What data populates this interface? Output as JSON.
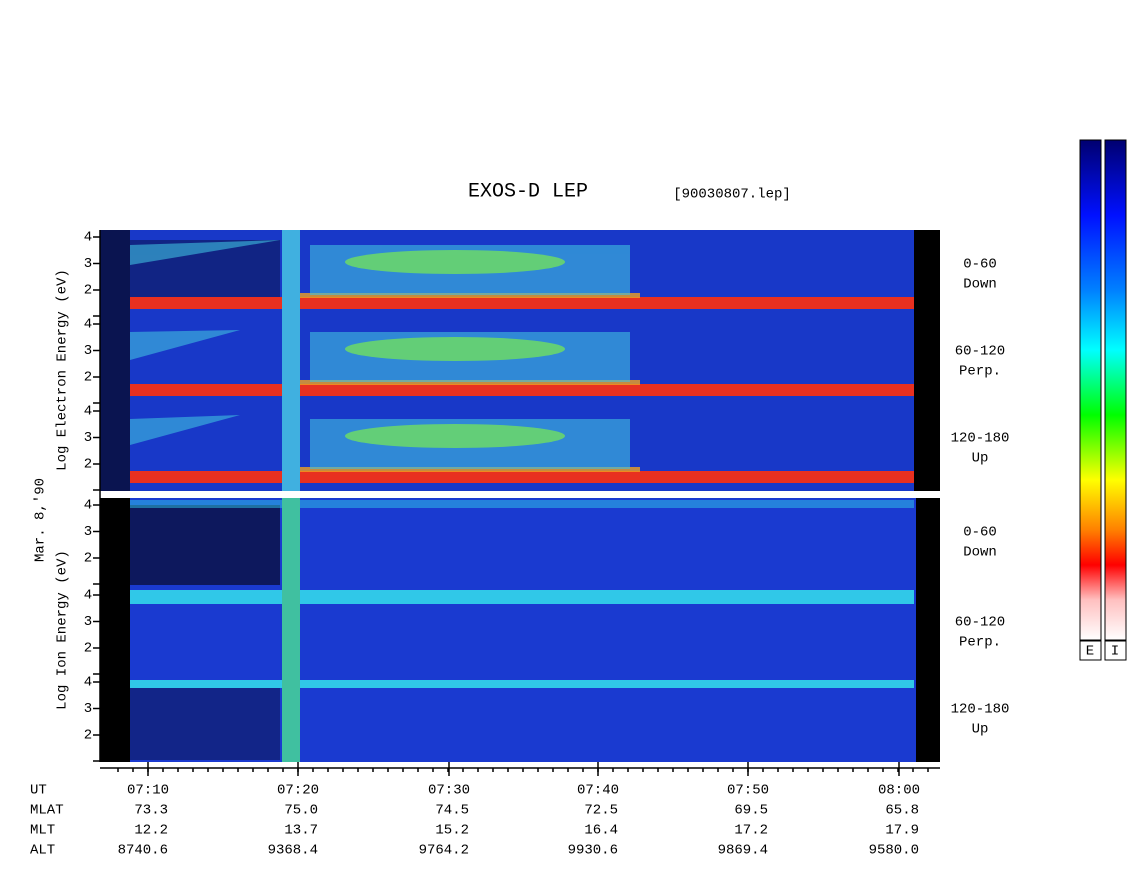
{
  "title": "EXOS-D LEP",
  "file": "[90030807.lep]",
  "date": "Mar. 8,'90",
  "electron": {
    "axis_label": "Log Electron Energy (eV)",
    "panels": [
      {
        "angle": "0-60",
        "direction": "Down",
        "yticks": [
          4,
          3,
          2
        ]
      },
      {
        "angle": "60-120",
        "direction": "Perp.",
        "yticks": [
          4,
          3,
          2
        ]
      },
      {
        "angle": "120-180",
        "direction": "Up",
        "yticks": [
          4,
          3,
          2
        ]
      }
    ]
  },
  "ion": {
    "axis_label": "Log Ion Energy (eV)",
    "panels": [
      {
        "angle": "0-60",
        "direction": "Down",
        "yticks": [
          4,
          3,
          2
        ]
      },
      {
        "angle": "60-120",
        "direction": "Perp.",
        "yticks": [
          4,
          3,
          2
        ]
      },
      {
        "angle": "120-180",
        "direction": "Up",
        "yticks": [
          4,
          3,
          2
        ]
      }
    ]
  },
  "orbit": {
    "rows": [
      {
        "label": "UT",
        "values": [
          "07:10",
          "07:20",
          "07:30",
          "07:40",
          "07:50",
          "08:00"
        ]
      },
      {
        "label": "MLAT",
        "values": [
          "73.3",
          "75.0",
          "74.5",
          "72.5",
          "69.5",
          "65.8"
        ]
      },
      {
        "label": "MLT",
        "values": [
          "12.2",
          "13.7",
          "15.2",
          "16.4",
          "17.2",
          "17.9"
        ]
      },
      {
        "label": "ALT",
        "values": [
          "8740.6",
          "9368.4",
          "9764.2",
          "9930.6",
          "9869.4",
          "9580.0"
        ]
      }
    ]
  },
  "colorbars": [
    "E",
    "I"
  ]
}
